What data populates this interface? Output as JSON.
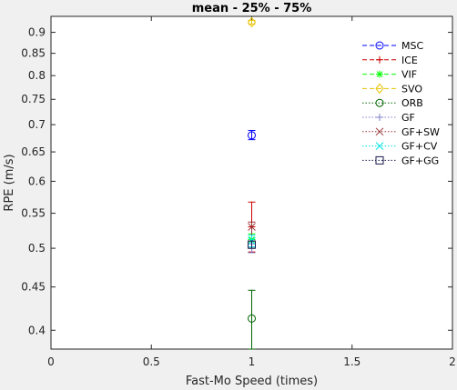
{
  "chart_data": {
    "type": "scatter",
    "title": "mean - 25% - 75%",
    "xlabel": "Fast-Mo Speed (times)",
    "ylabel": "RPE (m/s)",
    "xlim": [
      0,
      2
    ],
    "ylim": [
      0.38,
      0.94
    ],
    "y_scale": "log",
    "x_ticks": [
      "0",
      "0.5",
      "1",
      "1.5",
      "2"
    ],
    "x_tick_values": [
      0,
      0.5,
      1,
      1.5,
      2
    ],
    "y_ticks": [
      "0.4",
      "0.45",
      "0.5",
      "0.55",
      "0.6",
      "0.65",
      "0.7",
      "0.75",
      "0.8",
      "0.85",
      "0.9"
    ],
    "y_tick_values": [
      0.4,
      0.45,
      0.5,
      0.55,
      0.6,
      0.65,
      0.7,
      0.75,
      0.8,
      0.85,
      0.9
    ],
    "grid": false,
    "legend_position": "top-right",
    "series": [
      {
        "name": "MSC",
        "color": "#0000ff",
        "marker": "circle",
        "line_style": "dashed",
        "x": 1,
        "mean": 0.68,
        "p25": 0.672,
        "p75": 0.689
      },
      {
        "name": "ICE",
        "color": "#cc0000",
        "marker": "plus",
        "line_style": "dashed",
        "x": 1,
        "mean": 0.53,
        "p25": 0.495,
        "p75": 0.567
      },
      {
        "name": "VIF",
        "color": "#00ff00",
        "marker": "asterisk",
        "line_style": "dashed",
        "x": 1,
        "mean": 0.512,
        "p25": 0.5,
        "p75": 0.52
      },
      {
        "name": "SVO",
        "color": "#e6c200",
        "marker": "diamond",
        "line_style": "dashed",
        "x": 1,
        "mean": 0.925,
        "p25": 0.92,
        "p75": 0.93
      },
      {
        "name": "ORB",
        "color": "#006400",
        "marker": "circle",
        "line_style": "dotted",
        "x": 1,
        "mean": 0.413,
        "p25": 0.38,
        "p75": 0.446
      },
      {
        "name": "GF",
        "color": "#7f7fcc",
        "marker": "plus",
        "line_style": "dotted",
        "x": 1,
        "mean": 0.5,
        "p25": 0.494,
        "p75": 0.506
      },
      {
        "name": "GF+SW",
        "color": "#993333",
        "marker": "x",
        "line_style": "dotted",
        "x": 1,
        "mean": 0.53,
        "p25": 0.5,
        "p75": 0.537
      },
      {
        "name": "GF+CV",
        "color": "#00e5e5",
        "marker": "x",
        "line_style": "dotted",
        "x": 1,
        "mean": 0.51,
        "p25": 0.502,
        "p75": 0.518
      },
      {
        "name": "GF+GG",
        "color": "#1a1a4d",
        "marker": "square",
        "line_style": "dotted",
        "x": 1,
        "mean": 0.505,
        "p25": 0.5,
        "p75": 0.51
      }
    ]
  }
}
